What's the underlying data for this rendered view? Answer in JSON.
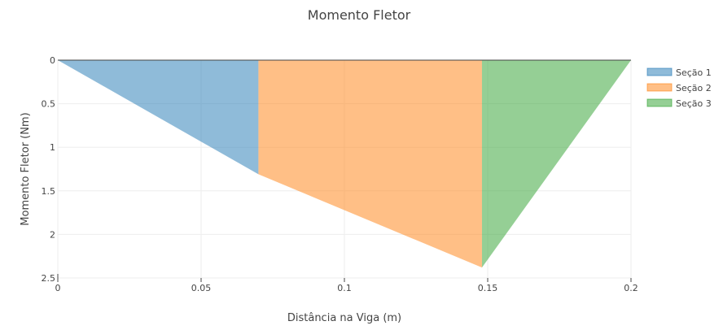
{
  "chart_data": {
    "type": "area",
    "title": "Momento Fletor",
    "xlabel": "Distância na Viga (m)",
    "ylabel": "Momento Fletor (Nm)",
    "xlim": [
      0,
      0.2
    ],
    "ylim": [
      2.5,
      0
    ],
    "y_axis_reversed": true,
    "grid": true,
    "legend_position": "top-right",
    "x_ticks": [
      "0",
      "0.05",
      "0.1",
      "0.15",
      "0.2"
    ],
    "x_tick_values": [
      0,
      0.05,
      0.1,
      0.15,
      0.2
    ],
    "y_ticks": [
      "0",
      "0.5",
      "1",
      "1.5",
      "2",
      "2.5"
    ],
    "y_tick_values": [
      0,
      0.5,
      1,
      1.5,
      2,
      2.5
    ],
    "series": [
      {
        "name": "Seção 1",
        "color": "#1f77b4",
        "x": [
          0,
          0.07
        ],
        "y": [
          0,
          1.31
        ]
      },
      {
        "name": "Seção 2",
        "color": "#ff7f0e",
        "x": [
          0.07,
          0.148
        ],
        "y": [
          1.31,
          2.38
        ]
      },
      {
        "name": "Seção 3",
        "color": "#2ca02c",
        "x": [
          0.148,
          0.2
        ],
        "y": [
          2.38,
          0
        ]
      }
    ]
  }
}
